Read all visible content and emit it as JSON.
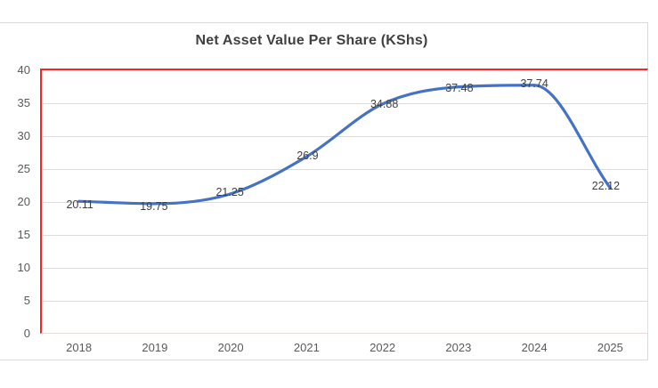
{
  "chart_data": {
    "type": "line",
    "title": "Net Asset Value Per Share (KShs)",
    "categories": [
      "2018",
      "2019",
      "2020",
      "2021",
      "2022",
      "2023",
      "2024",
      "2025"
    ],
    "series": [
      {
        "name": "Net Asset Value Per Share (KShs)",
        "values": [
          20.11,
          19.75,
          21.25,
          26.9,
          34.88,
          37.48,
          37.74,
          22.12
        ]
      }
    ],
    "data_labels": [
      "20.11",
      "19.75",
      "21.25",
      "26.9",
      "34.88",
      "37.48",
      "37.74",
      "22.12"
    ],
    "xlabel": "",
    "ylabel": "",
    "ylim": [
      0,
      40
    ],
    "ytick_step": 5,
    "yticks": [
      0,
      5,
      10,
      15,
      20,
      25,
      30,
      35,
      40
    ],
    "grid": true,
    "legend_position": "none",
    "line_smoothing": true,
    "colors": {
      "line": "#4472c4",
      "plot_border_top_left": "#ff2222",
      "plot_border_bottom_right": "#ecd9d9",
      "gridline": "#dcdcdc",
      "chart_border": "#d9d9d9",
      "tick_label": "#595959",
      "data_label": "#3f3f3f",
      "title": "#404040",
      "background": "#ffffff"
    }
  }
}
